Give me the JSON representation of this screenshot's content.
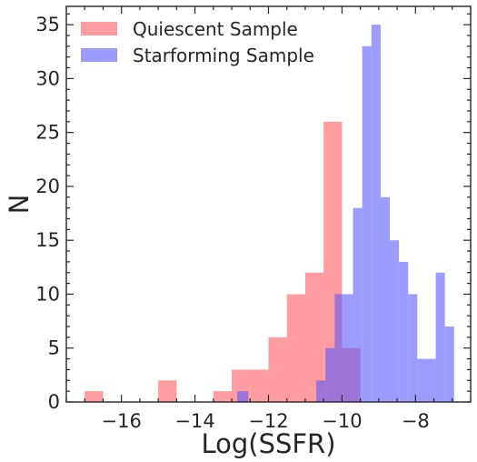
{
  "chart_data": {
    "type": "bar",
    "title": "",
    "xlabel": "Log(SSFR)",
    "ylabel": "N",
    "xlim": [
      -17.5,
      -6.5
    ],
    "ylim": [
      0,
      36.7
    ],
    "xticks": [
      -16,
      -14,
      -12,
      -10,
      -8
    ],
    "xtick_labels": [
      "−16",
      "−14",
      "−12",
      "−10",
      "−8"
    ],
    "yticks": [
      0,
      5,
      10,
      15,
      20,
      25,
      30,
      35
    ],
    "ytick_labels": [
      "0",
      "5",
      "10",
      "15",
      "20",
      "25",
      "30",
      "35"
    ],
    "grid": false,
    "legend_position": "top-left",
    "series": [
      {
        "name": "Quiescent Sample",
        "color": "#ff5a5f",
        "opacity": 0.6,
        "bins": [
          {
            "x0": -17.0,
            "x1": -16.5,
            "count": 1
          },
          {
            "x0": -15.0,
            "x1": -14.5,
            "count": 2
          },
          {
            "x0": -13.5,
            "x1": -13.0,
            "count": 1
          },
          {
            "x0": -13.0,
            "x1": -12.5,
            "count": 3
          },
          {
            "x0": -12.5,
            "x1": -12.0,
            "count": 3
          },
          {
            "x0": -12.0,
            "x1": -11.5,
            "count": 6
          },
          {
            "x0": -11.5,
            "x1": -11.0,
            "count": 10
          },
          {
            "x0": -11.0,
            "x1": -10.5,
            "count": 12
          },
          {
            "x0": -10.5,
            "x1": -10.0,
            "count": 26
          },
          {
            "x0": -10.0,
            "x1": -9.5,
            "count": 5
          }
        ]
      },
      {
        "name": "Starforming Sample",
        "color": "#5a5aff",
        "opacity": 0.6,
        "bins": [
          {
            "x0": -12.85,
            "x1": -12.55,
            "count": 1
          },
          {
            "x0": -10.7,
            "x1": -10.45,
            "count": 2
          },
          {
            "x0": -10.45,
            "x1": -10.2,
            "count": 5
          },
          {
            "x0": -10.2,
            "x1": -9.95,
            "count": 10
          },
          {
            "x0": -9.95,
            "x1": -9.7,
            "count": 10
          },
          {
            "x0": -9.7,
            "x1": -9.45,
            "count": 18
          },
          {
            "x0": -9.45,
            "x1": -9.2,
            "count": 33
          },
          {
            "x0": -9.2,
            "x1": -8.95,
            "count": 35
          },
          {
            "x0": -8.95,
            "x1": -8.7,
            "count": 19
          },
          {
            "x0": -8.7,
            "x1": -8.45,
            "count": 15
          },
          {
            "x0": -8.45,
            "x1": -8.2,
            "count": 13
          },
          {
            "x0": -8.2,
            "x1": -7.95,
            "count": 10
          },
          {
            "x0": -7.95,
            "x1": -7.7,
            "count": 4
          },
          {
            "x0": -7.7,
            "x1": -7.45,
            "count": 4
          },
          {
            "x0": -7.45,
            "x1": -7.2,
            "count": 12
          },
          {
            "x0": -7.2,
            "x1": -6.95,
            "count": 7
          }
        ]
      }
    ]
  }
}
